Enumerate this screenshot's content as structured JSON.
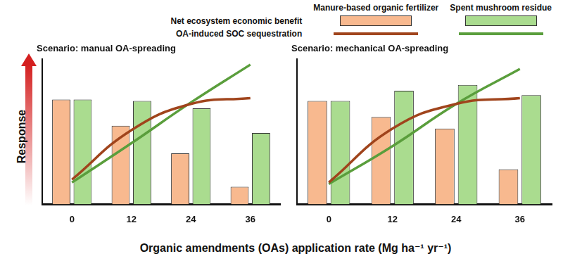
{
  "xlabel": "Organic amendments (OAs) application rate (Mg ha⁻¹ yr⁻¹)",
  "ylabel": "Response",
  "chart_data": [
    {
      "type": "bar",
      "title": "Scenario: manual OA-spreading",
      "categories": [
        0,
        12,
        24,
        36
      ],
      "ylim": [
        0,
        100
      ],
      "yticks": [],
      "grid": false,
      "tick_labels": "x",
      "series": [
        {
          "name": "Manure-based organic fertilizer",
          "measure": "Net ecosystem economic benefit",
          "type": "bar",
          "color": "#f8b98f",
          "values": [
            72,
            54,
            35,
            12
          ]
        },
        {
          "name": "Spent mushroom residue",
          "measure": "Net ecosystem economic benefit",
          "type": "bar",
          "color": "#aadc8f",
          "values": [
            72,
            71,
            66,
            49
          ]
        },
        {
          "name": "Manure-based organic fertilizer",
          "measure": "OA-induced SOC sequestration",
          "type": "line",
          "color": "#a0441c",
          "values": [
            17,
            51,
            69,
            73
          ]
        },
        {
          "name": "Spent mushroom residue",
          "measure": "OA-induced SOC sequestration",
          "type": "line",
          "color": "#5a9e3c",
          "values": [
            15,
            42,
            70,
            96
          ]
        }
      ]
    },
    {
      "type": "bar",
      "title": "Scenario: mechanical OA-spreading",
      "categories": [
        0,
        12,
        24,
        36
      ],
      "ylim": [
        0,
        100
      ],
      "yticks": [],
      "grid": false,
      "tick_labels": "x",
      "series": [
        {
          "name": "Manure-based organic fertilizer",
          "measure": "Net ecosystem economic benefit",
          "type": "bar",
          "color": "#f8b98f",
          "values": [
            71,
            60,
            52,
            24
          ]
        },
        {
          "name": "Spent mushroom residue",
          "measure": "Net ecosystem economic benefit",
          "type": "bar",
          "color": "#aadc8f",
          "values": [
            71,
            78,
            82,
            75
          ]
        },
        {
          "name": "Manure-based organic fertilizer",
          "measure": "OA-induced SOC sequestration",
          "type": "line",
          "color": "#a0441c",
          "values": [
            15,
            52,
            69,
            73
          ]
        },
        {
          "name": "Spent mushroom residue",
          "measure": "OA-induced SOC sequestration",
          "type": "line",
          "color": "#5a9e3c",
          "values": [
            14,
            40,
            69,
            93
          ]
        }
      ]
    }
  ]
}
